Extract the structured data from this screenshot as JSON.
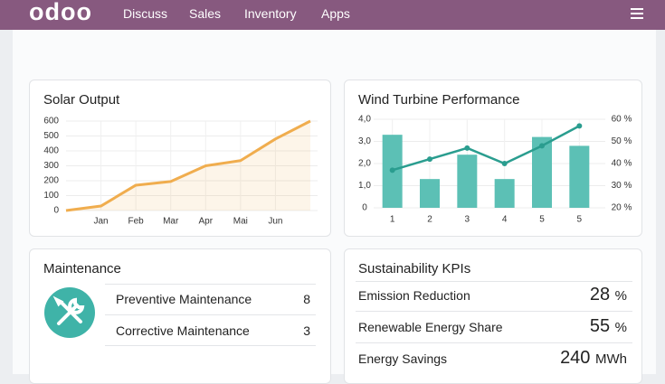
{
  "nav": {
    "logo": "odoo",
    "items": [
      "Discuss",
      "Sales",
      "Inventory",
      "Apps"
    ]
  },
  "chart_data": [
    {
      "type": "line",
      "title": "Solar Output",
      "categories": [
        null,
        "Jan",
        "Feb",
        "Mar",
        "Apr",
        "Mai",
        "Jun",
        null
      ],
      "series": [
        {
          "color": "#f0ad4e",
          "values": [
            0,
            30,
            170,
            195,
            300,
            335,
            480,
            600
          ]
        }
      ],
      "ylim": [
        0,
        600
      ],
      "yticks": [
        0,
        100,
        200,
        300,
        400,
        500,
        600
      ],
      "grid": true,
      "area": true
    },
    {
      "type": "combo",
      "title": "Wind Turbine Performance",
      "categories": [
        "1",
        "2",
        "3",
        "4",
        "5",
        "5"
      ],
      "series": [
        {
          "type": "bar",
          "color": "#5cc0b5",
          "values": [
            3.3,
            1.3,
            2.4,
            1.3,
            3.2,
            2.8
          ]
        },
        {
          "type": "line",
          "axis": "y2",
          "color": "#2a9d8f",
          "values": [
            37,
            42,
            47,
            40,
            48,
            57
          ]
        }
      ],
      "ylim": [
        0,
        4
      ],
      "yticks": [
        0,
        {
          "value": 1,
          "label": "1,0"
        },
        {
          "value": 2,
          "label": "2,0"
        },
        {
          "value": 3,
          "label": "3,0"
        },
        {
          "value": 4,
          "label": "4,0"
        }
      ],
      "y2lim": [
        20,
        60
      ],
      "y2ticks": [
        {
          "value": 20,
          "label": "20 %"
        },
        {
          "value": 30,
          "label": "30 %"
        },
        {
          "value": 40,
          "label": "40 %"
        },
        {
          "value": 50,
          "label": "50 %"
        },
        {
          "value": 60,
          "label": "60 %"
        }
      ],
      "grid": true
    }
  ],
  "maintenance": {
    "title": "Maintenance",
    "items": [
      {
        "label": "Preventive Maintenance",
        "count": 8
      },
      {
        "label": "Corrective Maintenance",
        "count": 3
      }
    ]
  },
  "kpis": {
    "title": "Sustainability KPIs",
    "items": [
      {
        "label": "Emission Reduction",
        "value": "28",
        "unit": "%"
      },
      {
        "label": "Renewable Energy Share",
        "value": "55",
        "unit": "%"
      },
      {
        "label": "Energy Savings",
        "value": "240",
        "unit": "MWh"
      }
    ]
  }
}
